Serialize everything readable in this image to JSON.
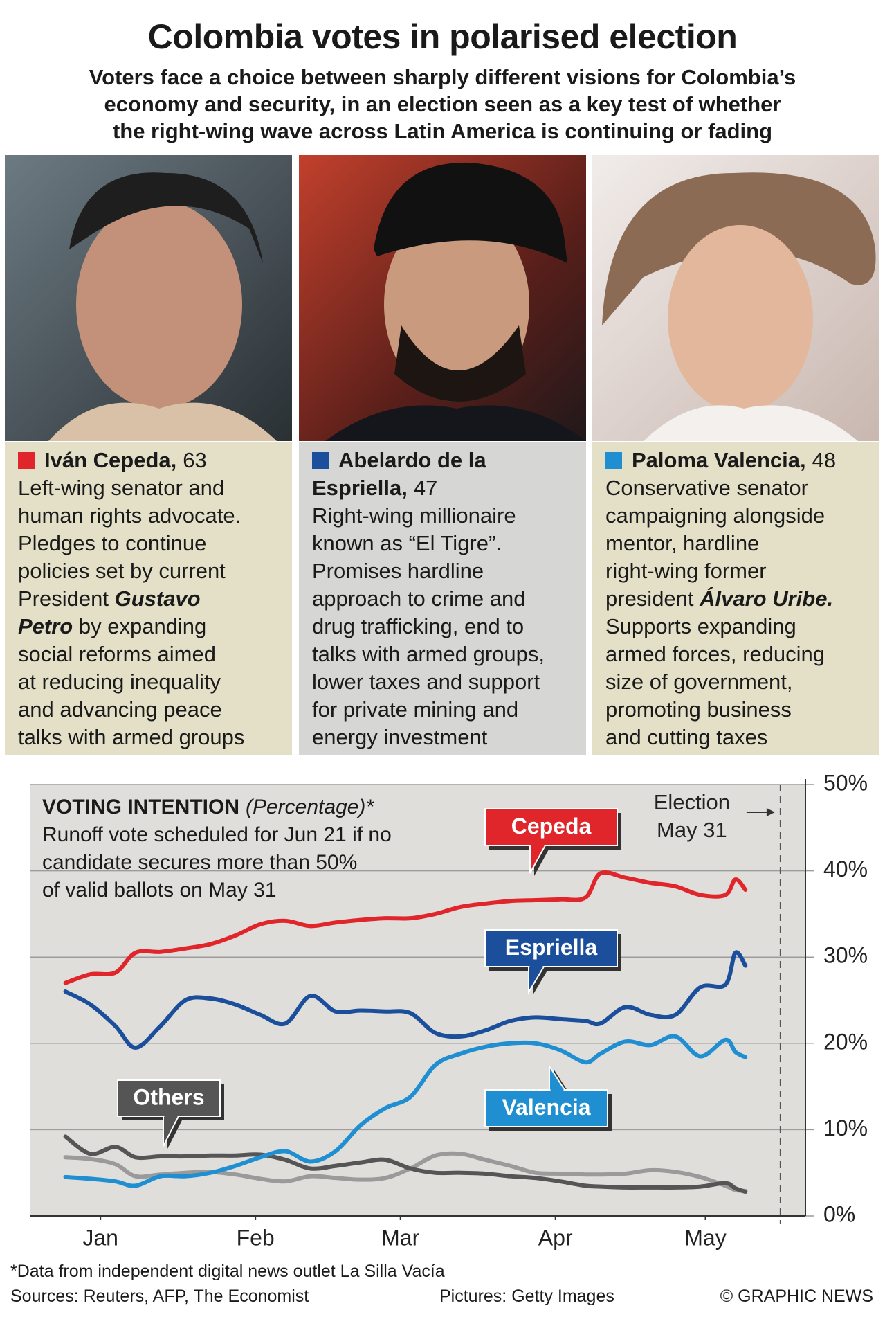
{
  "header": {
    "title": "Colombia votes in polarised election",
    "subtitle": [
      "Voters face a choice between sharply different visions for Colombia’s",
      "economy and security, in an election seen as a key test of whether",
      "the right-wing wave across Latin America is continuing or fading"
    ]
  },
  "candidates": [
    {
      "name": "Iván Cepeda,",
      "age": 63,
      "color": "#e0262b",
      "description": [
        [
          {
            "text": "Left-wing senator and"
          }
        ],
        [
          {
            "text": "human rights advocate."
          }
        ],
        [
          {
            "text": "Pledges to continue"
          }
        ],
        [
          {
            "text": "policies set by current"
          }
        ],
        [
          {
            "text": "President "
          },
          {
            "text": "Gustavo",
            "emphasis": true
          }
        ],
        [
          {
            "text": "Petro",
            "emphasis": true
          },
          {
            "text": " by expanding"
          }
        ],
        [
          {
            "text": "social reforms aimed"
          }
        ],
        [
          {
            "text": "at reducing inequality"
          }
        ],
        [
          {
            "text": "and advancing peace"
          }
        ],
        [
          {
            "text": "talks with armed groups"
          }
        ]
      ]
    },
    {
      "name": "Abelardo de la Espriella,",
      "age": 47,
      "color": "#1b4f9c",
      "description": [
        [
          {
            "text": "Right-wing millionaire"
          }
        ],
        [
          {
            "text": "known as “El Tigre”."
          }
        ],
        [
          {
            "text": "Promises hardline"
          }
        ],
        [
          {
            "text": "approach to crime and"
          }
        ],
        [
          {
            "text": "drug trafficking, end to"
          }
        ],
        [
          {
            "text": "talks with armed groups,"
          }
        ],
        [
          {
            "text": "lower taxes and support"
          }
        ],
        [
          {
            "text": "for private mining and"
          }
        ],
        [
          {
            "text": "energy investment"
          }
        ]
      ]
    },
    {
      "name": "Paloma Valencia,",
      "age": 48,
      "color": "#1f8fd2",
      "description": [
        [
          {
            "text": "Conservative senator"
          }
        ],
        [
          {
            "text": "campaigning alongside"
          }
        ],
        [
          {
            "text": "mentor, hardline"
          }
        ],
        [
          {
            "text": "right-wing former"
          }
        ],
        [
          {
            "text": "president "
          },
          {
            "text": "Álvaro Uribe.",
            "emphasis": true
          }
        ],
        [
          {
            "text": "Supports expanding"
          }
        ],
        [
          {
            "text": "armed forces, reducing"
          }
        ],
        [
          {
            "text": "size of government,"
          }
        ],
        [
          {
            "text": "promoting business"
          }
        ],
        [
          {
            "text": "and cutting taxes"
          }
        ]
      ]
    }
  ],
  "chart_data": {
    "type": "line",
    "title": "VOTING INTENTION",
    "title_note": "(Percentage)*",
    "subtitle": [
      "Runoff vote scheduled for Jun 21 if no",
      "candidate secures more than 50%",
      "of valid ballots on May 31"
    ],
    "x": [
      7,
      12,
      17,
      21,
      26,
      31,
      36,
      41,
      46,
      51,
      56,
      61,
      66,
      71,
      76,
      81,
      86,
      91,
      96,
      101,
      106,
      111,
      114,
      119,
      124,
      129,
      134,
      139,
      141,
      143
    ],
    "xlim": [
      0,
      155
    ],
    "xticks": [
      {
        "value": 14,
        "label": "Jan"
      },
      {
        "value": 45,
        "label": "Feb"
      },
      {
        "value": 74,
        "label": "Mar"
      },
      {
        "value": 105,
        "label": "Apr"
      },
      {
        "value": 135,
        "label": "May"
      }
    ],
    "ylim": [
      0,
      50
    ],
    "yticks": [
      {
        "value": 0,
        "label": "0%"
      },
      {
        "value": 10,
        "label": "10%"
      },
      {
        "value": 20,
        "label": "20%"
      },
      {
        "value": 30,
        "label": "30%"
      },
      {
        "value": 40,
        "label": "40%"
      },
      {
        "value": 50,
        "label": "50%"
      }
    ],
    "grid": true,
    "series": [
      {
        "name": "Cepeda",
        "color": "#e0262b",
        "values": [
          27,
          28,
          28.2,
          30.5,
          30.6,
          31,
          31.5,
          32.5,
          33.8,
          34.2,
          33.6,
          34,
          34.3,
          34.5,
          34.5,
          35,
          35.8,
          36.2,
          36.5,
          36.6,
          36.7,
          36.9,
          39.7,
          39.2,
          38.6,
          38.2,
          37.2,
          37.2,
          39,
          37.8
        ]
      },
      {
        "name": "Espriella",
        "color": "#1b4f9c",
        "values": [
          26,
          24.5,
          22,
          19.5,
          22,
          25,
          25.2,
          24.5,
          23.3,
          22.3,
          25.5,
          23.7,
          23.8,
          23.7,
          23.5,
          21.2,
          20.8,
          21.5,
          22.6,
          23,
          22.8,
          22.6,
          22.3,
          24.2,
          23.3,
          23.3,
          26.5,
          26.8,
          30.5,
          29
        ]
      },
      {
        "name": "Valencia",
        "color": "#1f8fd2",
        "values": [
          4.5,
          4.3,
          4,
          3.5,
          4.6,
          4.6,
          5,
          5.8,
          6.8,
          7.5,
          6.3,
          7.5,
          10.5,
          12.5,
          13.8,
          17.5,
          18.8,
          19.6,
          20,
          20,
          19.2,
          17.8,
          18.8,
          20.2,
          19.8,
          20.8,
          18.5,
          20.4,
          19,
          18.4
        ]
      },
      {
        "name": "Others",
        "color": "#555555",
        "values": [
          9.2,
          7.2,
          8,
          6.8,
          6.9,
          6.9,
          7,
          7,
          7.1,
          6.5,
          5.5,
          5.8,
          6.2,
          6.5,
          5.5,
          5,
          5,
          4.9,
          4.6,
          4.4,
          4,
          3.5,
          3.4,
          3.3,
          3.3,
          3.3,
          3.4,
          3.8,
          3.2,
          2.8
        ]
      },
      {
        "color": "#9a9a9a",
        "values": [
          6.8,
          6.6,
          6,
          4.6,
          4.8,
          5,
          5.1,
          4.8,
          4.3,
          4,
          4.6,
          4.4,
          4.2,
          4.4,
          5.5,
          7,
          7.2,
          6.5,
          5.8,
          5,
          4.9,
          4.8,
          4.8,
          4.9,
          5.3,
          5.1,
          4.5,
          3.5,
          3,
          2.9
        ]
      }
    ],
    "election": {
      "x": 150,
      "label": [
        "Election",
        "May 31"
      ]
    },
    "footnote": "*Data from independent digital news outlet La Silla Vacía"
  },
  "footer": {
    "sources": "Sources: Reuters, AFP, The Economist",
    "pictures": "Pictures: Getty Images",
    "copyright": "© GRAPHIC NEWS"
  }
}
